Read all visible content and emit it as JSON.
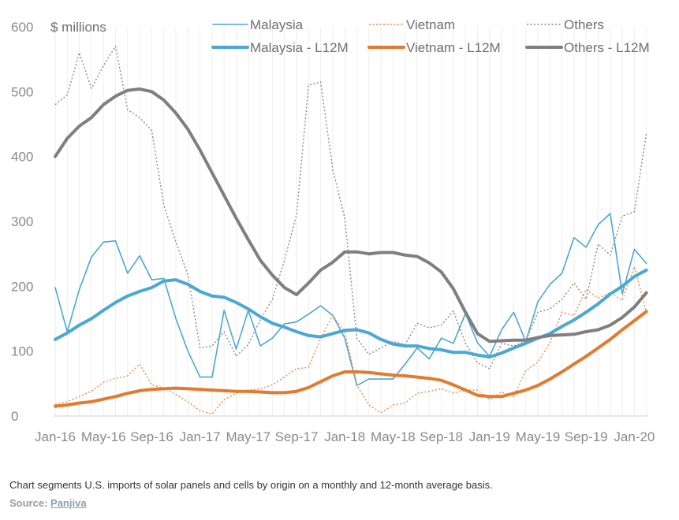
{
  "chart_data": {
    "type": "line",
    "ylabel": "$ millions",
    "ylim": [
      0,
      600
    ],
    "yticks": [
      0,
      100,
      200,
      300,
      400,
      500,
      600
    ],
    "x": [
      "Jan-16",
      "Feb-16",
      "Mar-16",
      "Apr-16",
      "May-16",
      "Jun-16",
      "Jul-16",
      "Aug-16",
      "Sep-16",
      "Oct-16",
      "Nov-16",
      "Dec-16",
      "Jan-17",
      "Feb-17",
      "Mar-17",
      "Apr-17",
      "May-17",
      "Jun-17",
      "Jul-17",
      "Aug-17",
      "Sep-17",
      "Oct-17",
      "Nov-17",
      "Dec-17",
      "Jan-18",
      "Feb-18",
      "Mar-18",
      "Apr-18",
      "May-18",
      "Jun-18",
      "Jul-18",
      "Aug-18",
      "Sep-18",
      "Oct-18",
      "Nov-18",
      "Dec-18",
      "Jan-19",
      "Feb-19",
      "Mar-19",
      "Apr-19",
      "May-19",
      "Jun-19",
      "Jul-19",
      "Aug-19",
      "Sep-19",
      "Oct-19",
      "Nov-19",
      "Dec-19",
      "Jan-20",
      "Feb-20"
    ],
    "xtick_labels": [
      "Jan-16",
      "May-16",
      "Sep-16",
      "Jan-17",
      "May-17",
      "Sep-17",
      "Jan-18",
      "May-18",
      "Sep-18",
      "Jan-19",
      "May-19",
      "Sep-19",
      "Jan-20"
    ],
    "xtick_index": [
      0,
      4,
      8,
      12,
      16,
      20,
      24,
      28,
      32,
      36,
      40,
      44,
      48
    ],
    "series": [
      {
        "name": "Malaysia",
        "style": "thin-solid",
        "color": "#4aa8d2",
        "values": [
          198,
          130,
          195,
          245,
          268,
          270,
          220,
          247,
          210,
          212,
          150,
          100,
          60,
          60,
          163,
          103,
          163,
          108,
          120,
          142,
          145,
          157,
          170,
          155,
          120,
          47,
          57,
          57,
          57,
          80,
          105,
          88,
          120,
          112,
          158,
          113,
          92,
          133,
          160,
          115,
          176,
          203,
          220,
          275,
          260,
          295,
          312,
          188,
          257,
          235
        ]
      },
      {
        "name": "Vietnam",
        "style": "thin-dotted",
        "color": "#e98b45",
        "values": [
          18,
          22,
          30,
          38,
          52,
          58,
          62,
          80,
          48,
          43,
          33,
          22,
          8,
          3,
          25,
          35,
          40,
          42,
          48,
          60,
          73,
          75,
          120,
          155,
          130,
          48,
          17,
          5,
          17,
          20,
          35,
          38,
          42,
          35,
          40,
          40,
          25,
          37,
          30,
          70,
          83,
          113,
          160,
          155,
          195,
          182,
          190,
          178,
          230,
          160
        ]
      },
      {
        "name": "Others",
        "style": "thin-dotted",
        "color": "#8a8a8a",
        "values": [
          480,
          495,
          560,
          505,
          540,
          570,
          472,
          460,
          440,
          325,
          268,
          218,
          105,
          108,
          130,
          92,
          110,
          148,
          180,
          240,
          310,
          510,
          515,
          380,
          305,
          120,
          95,
          105,
          115,
          110,
          143,
          136,
          140,
          162,
          112,
          82,
          73,
          112,
          108,
          115,
          160,
          165,
          180,
          205,
          180,
          265,
          248,
          308,
          315,
          437
        ]
      },
      {
        "name": "Malaysia - L12M",
        "style": "thick",
        "color": "#4aa8d2",
        "values": [
          118,
          128,
          140,
          150,
          163,
          175,
          185,
          192,
          198,
          208,
          210,
          203,
          192,
          185,
          183,
          175,
          165,
          153,
          143,
          137,
          130,
          124,
          122,
          127,
          132,
          133,
          128,
          118,
          111,
          108,
          108,
          104,
          102,
          98,
          98,
          94,
          91,
          97,
          105,
          112,
          120,
          127,
          138,
          148,
          160,
          173,
          188,
          200,
          215,
          225
        ]
      },
      {
        "name": "Vietnam - L12M",
        "style": "thick",
        "color": "#e07b30",
        "values": [
          15,
          17,
          20,
          22,
          26,
          30,
          35,
          39,
          41,
          42,
          43,
          42,
          41,
          40,
          39,
          38,
          38,
          37,
          36,
          36,
          38,
          44,
          53,
          62,
          68,
          68,
          67,
          65,
          63,
          62,
          60,
          58,
          55,
          48,
          40,
          32,
          30,
          30,
          35,
          40,
          47,
          57,
          68,
          80,
          92,
          105,
          118,
          133,
          147,
          161
        ]
      },
      {
        "name": "Others - L12M",
        "style": "thick",
        "color": "#7f7f7f",
        "values": [
          400,
          428,
          447,
          460,
          480,
          493,
          502,
          504,
          500,
          487,
          467,
          442,
          410,
          375,
          340,
          305,
          272,
          240,
          217,
          198,
          187,
          205,
          225,
          237,
          253,
          253,
          250,
          252,
          252,
          248,
          246,
          236,
          222,
          196,
          160,
          127,
          115,
          116,
          117,
          117,
          121,
          124,
          125,
          126,
          130,
          133,
          140,
          152,
          168,
          190
        ]
      }
    ]
  },
  "caption": "Chart segments U.S. imports of solar panels and cells by origin on a monthly and 12-month average basis.",
  "source_label": "Source:",
  "source_name": "Panjiva"
}
